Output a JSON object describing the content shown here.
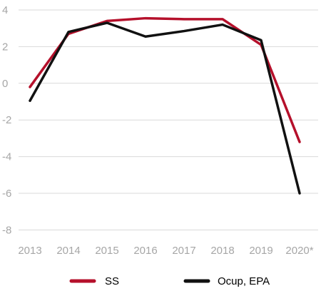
{
  "chart_data": {
    "type": "line",
    "categories": [
      "2013",
      "2014",
      "2015",
      "2016",
      "2017",
      "2018",
      "2019",
      "2020*"
    ],
    "ylim": [
      -8,
      4
    ],
    "yticks": [
      "4",
      "2",
      "0",
      "-2",
      "-4",
      "-6",
      "-8"
    ],
    "grid": true,
    "legend_position": "bottom",
    "series": [
      {
        "name": "SS",
        "color": "#b5102b",
        "values": [
          -0.2,
          2.7,
          3.4,
          3.55,
          3.5,
          3.5,
          2.1,
          -3.2
        ]
      },
      {
        "name": "Ocup, EPA",
        "color": "#111111",
        "values": [
          -0.95,
          2.8,
          3.3,
          2.55,
          2.85,
          3.2,
          2.35,
          -6.0
        ]
      }
    ]
  }
}
